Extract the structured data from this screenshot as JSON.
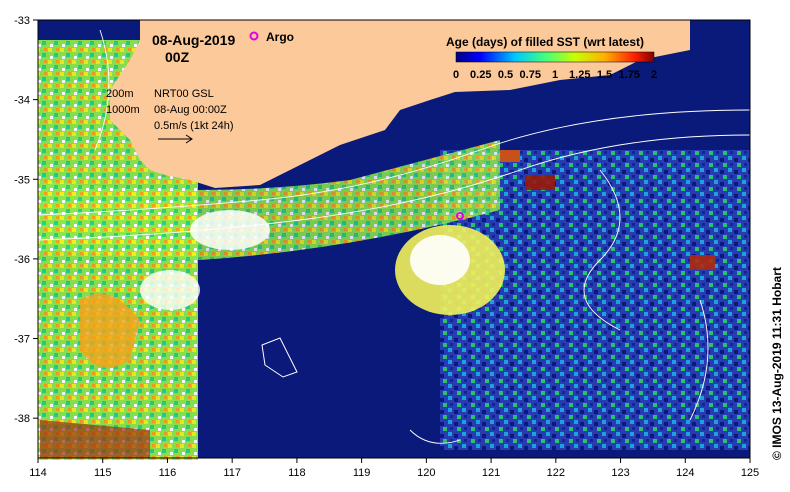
{
  "map": {
    "date_label": "08-Aug-2019",
    "time_label": "00Z",
    "argo_label": "Argo",
    "colorbar": {
      "title": "Age (days) of filled SST (wrt latest)",
      "tick_labels": [
        "0",
        "0.25",
        "0.5",
        "0.75",
        "1",
        "1.25",
        "1.5",
        "1.75",
        "2"
      ],
      "range": [
        0,
        2
      ]
    },
    "legend": {
      "isobath_200": "200m",
      "isobath_1000": "1000m",
      "product": "NRT00 GSL",
      "product_time": "08-Aug 00:00Z",
      "current_scale": "0.5m/s (1kt 24h)"
    },
    "credit": "© IMOS 13-Aug-2019 11:31 Hobart",
    "x_axis": {
      "range": [
        114,
        125
      ],
      "ticks": [
        "114",
        "115",
        "116",
        "117",
        "118",
        "119",
        "120",
        "121",
        "122",
        "123",
        "124",
        "125"
      ]
    },
    "y_axis": {
      "range": [
        -38.5,
        -33
      ],
      "ticks": [
        "-33",
        "-34",
        "-35",
        "-36",
        "-37",
        "-38"
      ]
    },
    "colors": {
      "land": "#fbc99a",
      "ocean_deep": "#0a1a7a",
      "argo_marker": "#e000e0"
    }
  }
}
